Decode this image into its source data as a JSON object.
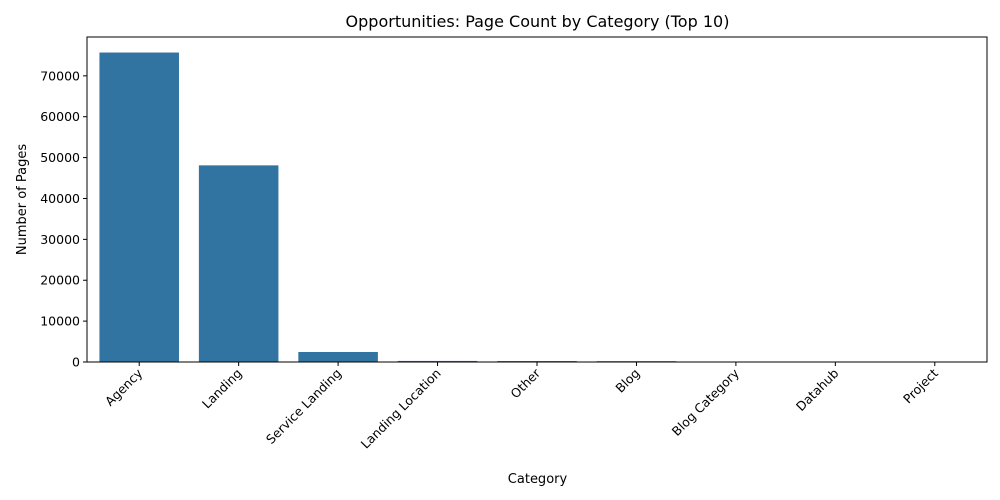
{
  "chart_data": {
    "type": "bar",
    "title": "Opportunities: Page Count by Category (Top 10)",
    "xlabel": "Category",
    "ylabel": "Number of Pages",
    "categories": [
      "Agency",
      "Landing",
      "Service Landing",
      "Landing Location",
      "Other",
      "Blog",
      "Blog Category",
      "Datahub",
      "Project"
    ],
    "values": [
      75700,
      48100,
      2450,
      260,
      230,
      200,
      20,
      15,
      10
    ],
    "ylim": [
      0,
      79500
    ],
    "yticks": [
      0,
      10000,
      20000,
      30000,
      40000,
      50000,
      60000,
      70000
    ],
    "grid": false,
    "legend": "none",
    "bar_color": "#3274a1"
  }
}
